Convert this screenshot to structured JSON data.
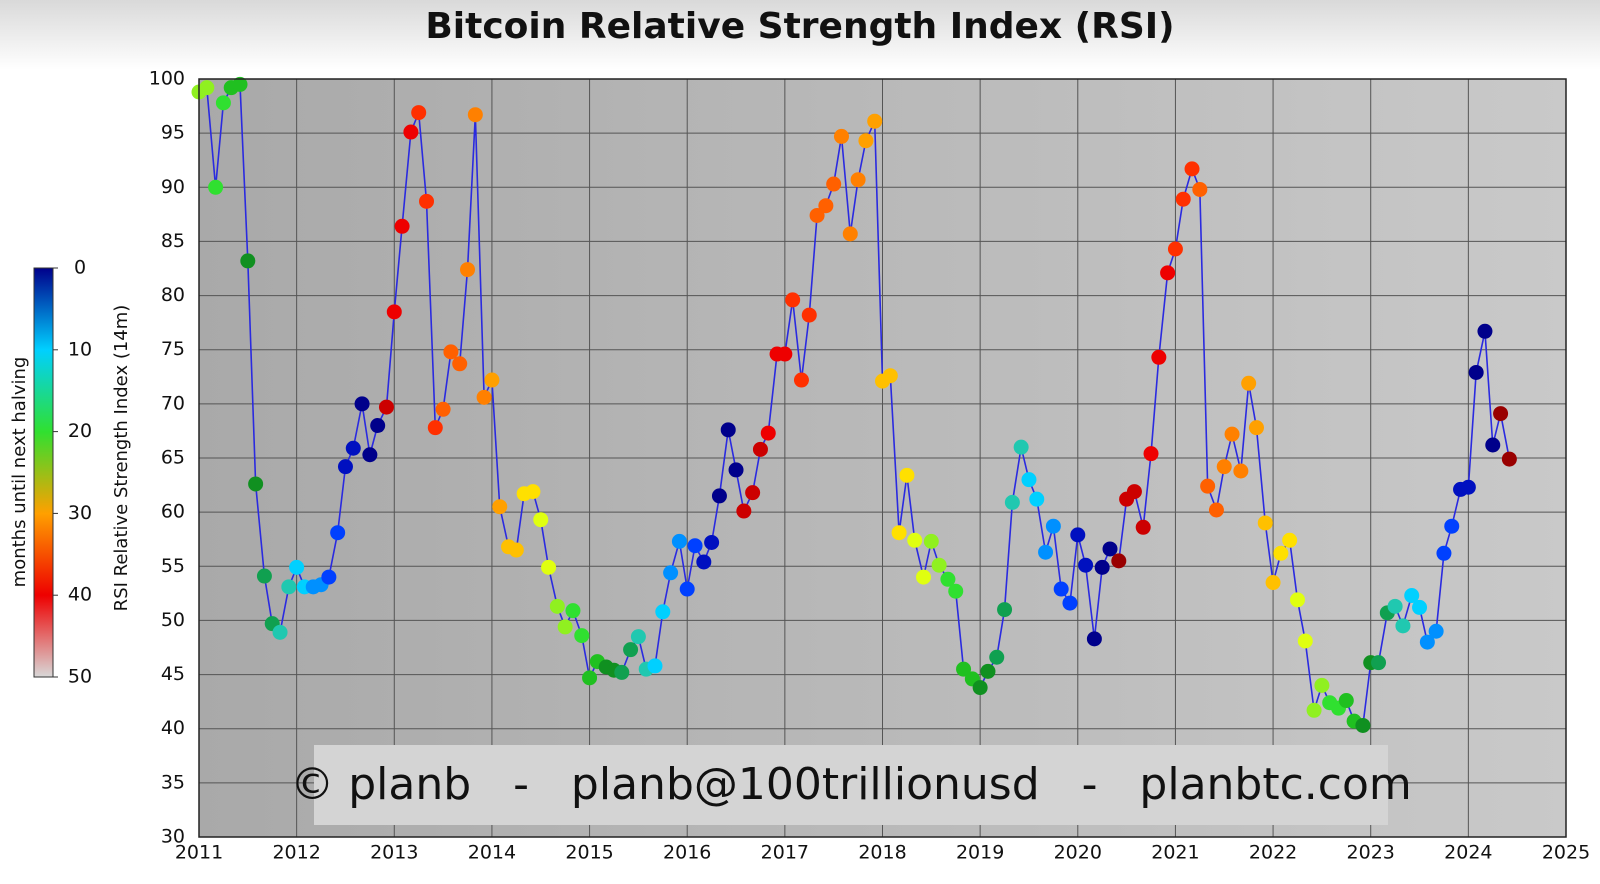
{
  "chart_data": {
    "type": "scatter-line",
    "title": "Bitcoin Relative Strength Index (RSI)",
    "y_label": "RSI Relative Strength Index (14m)",
    "annotation": "© planb   -   planb@100trillionusd   -   planbtc.com",
    "xlim": [
      2011,
      2025
    ],
    "xticks": [
      2011,
      2012,
      2013,
      2014,
      2015,
      2016,
      2017,
      2018,
      2019,
      2020,
      2021,
      2022,
      2023,
      2024,
      2025
    ],
    "ylim": [
      30,
      100
    ],
    "yticks": [
      30,
      35,
      40,
      45,
      50,
      55,
      60,
      65,
      70,
      75,
      80,
      85,
      90,
      95,
      100
    ],
    "grid": true,
    "line_color": "#2a2ae0",
    "x": [
      2011,
      2011.08,
      2011.17,
      2011.25,
      2011.33,
      2011.42,
      2011.5,
      2011.58,
      2011.67,
      2011.75,
      2011.83,
      2011.92,
      2012,
      2012.08,
      2012.17,
      2012.25,
      2012.33,
      2012.42,
      2012.5,
      2012.58,
      2012.67,
      2012.75,
      2012.83,
      2012.92,
      2013,
      2013.08,
      2013.17,
      2013.25,
      2013.33,
      2013.42,
      2013.5,
      2013.58,
      2013.67,
      2013.75,
      2013.83,
      2013.92,
      2014,
      2014.08,
      2014.17,
      2014.25,
      2014.33,
      2014.42,
      2014.5,
      2014.58,
      2014.67,
      2014.75,
      2014.83,
      2014.92,
      2015,
      2015.08,
      2015.17,
      2015.25,
      2015.33,
      2015.42,
      2015.5,
      2015.58,
      2015.67,
      2015.75,
      2015.83,
      2015.92,
      2016,
      2016.08,
      2016.17,
      2016.25,
      2016.33,
      2016.42,
      2016.5,
      2016.58,
      2016.67,
      2016.75,
      2016.83,
      2016.92,
      2017,
      2017.08,
      2017.17,
      2017.25,
      2017.33,
      2017.42,
      2017.5,
      2017.58,
      2017.67,
      2017.75,
      2017.83,
      2017.92,
      2018,
      2018.08,
      2018.17,
      2018.25,
      2018.33,
      2018.42,
      2018.5,
      2018.58,
      2018.67,
      2018.75,
      2018.83,
      2018.92,
      2019,
      2019.08,
      2019.17,
      2019.25,
      2019.33,
      2019.42,
      2019.5,
      2019.58,
      2019.67,
      2019.75,
      2019.83,
      2019.92,
      2020,
      2020.08,
      2020.17,
      2020.25,
      2020.33,
      2020.42,
      2020.5,
      2020.58,
      2020.67,
      2020.75,
      2020.83,
      2020.92,
      2021,
      2021.08,
      2021.17,
      2021.25,
      2021.33,
      2021.42,
      2021.5,
      2021.58,
      2021.67,
      2021.75,
      2021.83,
      2021.92,
      2022,
      2022.08,
      2022.17,
      2022.25,
      2022.33,
      2022.42,
      2022.5,
      2022.58,
      2022.67,
      2022.75,
      2022.83,
      2022.92,
      2023,
      2023.08,
      2023.17,
      2023.25,
      2023.33,
      2023.42,
      2023.5,
      2023.58,
      2023.67,
      2023.75,
      2023.83,
      2023.92,
      2024,
      2024.08,
      2024.17,
      2024.25,
      2024.33,
      2024.42
    ],
    "values": [
      98.8,
      99.2,
      90,
      97.8,
      99.2,
      99.5,
      83.2,
      62.6,
      54.1,
      49.7,
      48.9,
      53.1,
      54.9,
      53.1,
      53.1,
      53.3,
      54,
      58.1,
      64.2,
      65.9,
      70,
      65.3,
      68,
      69.7,
      78.5,
      86.4,
      95.1,
      96.9,
      88.7,
      67.8,
      69.5,
      74.8,
      73.7,
      82.4,
      96.7,
      70.6,
      72.2,
      60.5,
      56.8,
      56.5,
      61.7,
      61.9,
      59.3,
      54.9,
      51.3,
      49.4,
      50.9,
      48.6,
      44.7,
      46.2,
      45.7,
      45.4,
      45.2,
      47.3,
      48.5,
      45.5,
      45.8,
      50.8,
      54.4,
      57.3,
      52.9,
      56.9,
      55.4,
      57.2,
      61.5,
      67.6,
      63.9,
      60.1,
      61.8,
      65.8,
      67.3,
      74.6,
      74.6,
      79.6,
      72.2,
      78.2,
      87.4,
      88.3,
      90.3,
      94.7,
      85.7,
      90.7,
      94.3,
      96.1,
      72.1,
      72.6,
      58.1,
      63.4,
      57.4,
      54,
      57.3,
      55.1,
      53.8,
      52.7,
      45.5,
      44.6,
      43.8,
      45.3,
      46.6,
      51,
      60.9,
      66,
      63,
      61.2,
      56.3,
      58.7,
      52.9,
      51.6,
      57.9,
      55.1,
      48.3,
      54.9,
      56.6,
      55.5,
      61.2,
      61.9,
      58.6,
      65.4,
      74.3,
      82.1,
      84.3,
      88.9,
      91.7,
      89.8,
      62.4,
      60.2,
      64.2,
      67.2,
      63.8,
      71.9,
      67.8,
      59,
      53.5,
      56.2,
      57.4,
      51.9,
      48.1,
      41.7,
      44,
      42.4,
      41.9,
      42.6,
      40.7,
      40.3,
      46.1,
      46.1,
      50.7,
      51.3,
      49.5,
      52.3,
      51.2,
      48,
      49,
      56.2,
      58.7,
      62.1,
      62.3,
      72.9,
      76.7,
      66.2,
      69.1,
      64.9
    ],
    "point_colors": [
      "#90f020",
      "#90f020",
      "#30e030",
      "#30e030",
      "#20c020",
      "#20c020",
      "#109020",
      "#109020",
      "#10a050",
      "#10a050",
      "#20c8b0",
      "#20c8b0",
      "#00d0ff",
      "#00d0ff",
      "#0090ff",
      "#0090ff",
      "#0040ff",
      "#0040ff",
      "#0010c0",
      "#0010c0",
      "#00008b",
      "#00008b",
      "#00008b",
      "#cc0000",
      "#ee0000",
      "#ee0000",
      "#ee0000",
      "#ff3000",
      "#ff3000",
      "#ff3000",
      "#ff6000",
      "#ff6000",
      "#ff6000",
      "#ff8000",
      "#ff8000",
      "#ff8000",
      "#ffa000",
      "#ffa000",
      "#ffc000",
      "#ffc000",
      "#ffe000",
      "#ffe000",
      "#e0ff10",
      "#e0ff10",
      "#90f020",
      "#90f020",
      "#30e030",
      "#30e030",
      "#20c020",
      "#20c020",
      "#109020",
      "#109020",
      "#10a050",
      "#10a050",
      "#20c8b0",
      "#20c8b0",
      "#00d0ff",
      "#00d0ff",
      "#0090ff",
      "#0090ff",
      "#0040ff",
      "#0040ff",
      "#0010c0",
      "#0010c0",
      "#00008b",
      "#00008b",
      "#00008b",
      "#cc0000",
      "#cc0000",
      "#cc0000",
      "#ee0000",
      "#ee0000",
      "#ee0000",
      "#ff3000",
      "#ff3000",
      "#ff3000",
      "#ff6000",
      "#ff6000",
      "#ff6000",
      "#ff8000",
      "#ff8000",
      "#ff8000",
      "#ffa000",
      "#ffa000",
      "#ffc000",
      "#ffc000",
      "#ffe000",
      "#ffe000",
      "#e0ff10",
      "#e0ff10",
      "#90f020",
      "#90f020",
      "#30e030",
      "#30e030",
      "#20c020",
      "#20c020",
      "#109020",
      "#109020",
      "#10a050",
      "#10a050",
      "#20c8b0",
      "#20c8b0",
      "#00d0ff",
      "#00d0ff",
      "#0090ff",
      "#0090ff",
      "#0040ff",
      "#0040ff",
      "#0010c0",
      "#0010c0",
      "#00008b",
      "#00008b",
      "#00008b",
      "#990000",
      "#cc0000",
      "#cc0000",
      "#cc0000",
      "#ee0000",
      "#ee0000",
      "#ee0000",
      "#ff3000",
      "#ff3000",
      "#ff3000",
      "#ff6000",
      "#ff6000",
      "#ff6000",
      "#ff8000",
      "#ff8000",
      "#ff8000",
      "#ffa000",
      "#ffa000",
      "#ffc000",
      "#ffc000",
      "#ffe000",
      "#ffe000",
      "#e0ff10",
      "#e0ff10",
      "#90f020",
      "#90f020",
      "#30e030",
      "#30e030",
      "#20c020",
      "#20c020",
      "#109020",
      "#109020",
      "#10a050",
      "#10a050",
      "#20c8b0",
      "#20c8b0",
      "#00d0ff",
      "#00d0ff",
      "#0090ff",
      "#0090ff",
      "#0040ff",
      "#0040ff",
      "#0010c0",
      "#0010c0",
      "#00008b",
      "#00008b",
      "#00008b",
      "#990000",
      "#990000"
    ],
    "colorbar": {
      "label": "months until next halving",
      "ticks": [
        0,
        10,
        20,
        30,
        40,
        50
      ],
      "colors": [
        "#00008b",
        "#00d0ff",
        "#30e030",
        "#ffa000",
        "#ee0000",
        "#d8d8d8"
      ]
    }
  }
}
